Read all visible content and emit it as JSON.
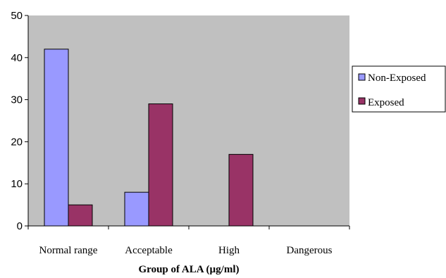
{
  "chart_data": {
    "type": "bar",
    "title": "",
    "xlabel": "Group of ALA (µg/ml)",
    "ylabel": "",
    "categories": [
      "Normal range",
      "Acceptable",
      "High",
      "Dangerous"
    ],
    "series": [
      {
        "name": "Non-Exposed",
        "values": [
          42,
          8,
          0,
          0
        ],
        "color": "#9999ff"
      },
      {
        "name": "Exposed",
        "values": [
          5,
          29,
          17,
          0
        ],
        "color": "#993366"
      }
    ],
    "ylim": [
      0,
      50
    ],
    "yticks": [
      "0",
      "10",
      "20",
      "30",
      "40",
      "50"
    ],
    "grid": false,
    "legend": "right",
    "plot_background": "#c0c0c0"
  }
}
